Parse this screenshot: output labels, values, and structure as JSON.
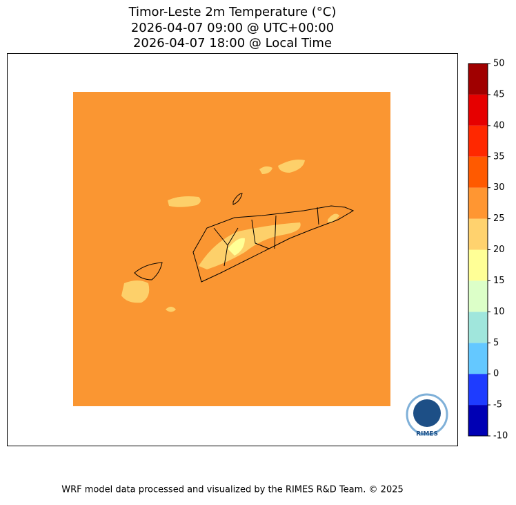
{
  "title": [
    "Timor-Leste 2m Temperature (°C)",
    "2026-04-07 09:00 @ UTC+00:00",
    "2026-04-07 18:00 @ Local Time"
  ],
  "colorbar": {
    "lim": [
      -10,
      50
    ],
    "ticks": [
      -10,
      -5,
      0,
      5,
      10,
      15,
      20,
      25,
      30,
      35,
      40,
      45,
      50
    ],
    "colors": [
      "#0000b4",
      "#1e3cff",
      "#64c8ff",
      "#a0e6dc",
      "#dcffc8",
      "#ffff96",
      "#ffd26e",
      "#ff9632",
      "#ff5a00",
      "#ff2800",
      "#e60000",
      "#a00000"
    ]
  },
  "logo": "RIMES",
  "footer": "WRF model data processed and visualized by the RIMES R&D Team. © 2025"
}
